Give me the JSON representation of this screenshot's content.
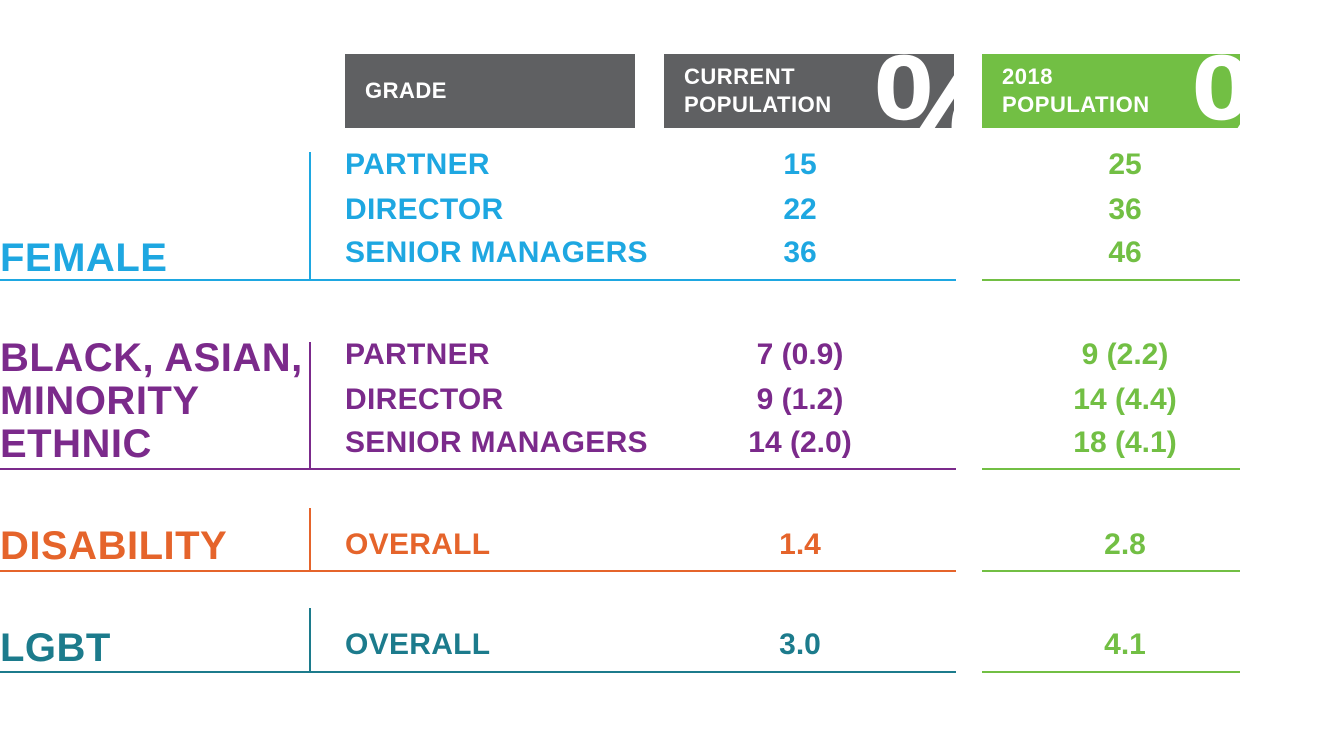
{
  "header": {
    "grade": "GRADE",
    "current_line1": "CURRENT",
    "current_line2": "POPULATION",
    "target_line1": "2018",
    "target_line2": "POPULATION",
    "percent_symbol": "%"
  },
  "colors": {
    "female": "#1ea7e1",
    "bame": "#7b2a8b",
    "disability": "#e5642b",
    "lgbt": "#1c7b8c",
    "target": "#72bf44",
    "header_gray": "#5f6062"
  },
  "chart_data": {
    "type": "table",
    "columns": [
      "GRADE",
      "CURRENT POPULATION %",
      "2018 POPULATION %"
    ],
    "groups": [
      {
        "lines": [
          "FEMALE"
        ],
        "rows": [
          {
            "grade": "PARTNER",
            "current": "15",
            "target": "25"
          },
          {
            "grade": "DIRECTOR",
            "current": "22",
            "target": "36"
          },
          {
            "grade": "SENIOR MANAGERS",
            "current": "36",
            "target": "46"
          }
        ]
      },
      {
        "lines": [
          "BLACK, ASIAN,",
          "MINORITY",
          "ETHNIC"
        ],
        "rows": [
          {
            "grade": "PARTNER",
            "current": "7 (0.9)",
            "target": "9 (2.2)"
          },
          {
            "grade": "DIRECTOR",
            "current": "9 (1.2)",
            "target": "14 (4.4)"
          },
          {
            "grade": "SENIOR MANAGERS",
            "current": "14 (2.0)",
            "target": "18 (4.1)"
          }
        ]
      },
      {
        "lines": [
          "DISABILITY"
        ],
        "rows": [
          {
            "grade": "OVERALL",
            "current": "1.4",
            "target": "2.8"
          }
        ]
      },
      {
        "lines": [
          "LGBT"
        ],
        "rows": [
          {
            "grade": "OVERALL",
            "current": "3.0",
            "target": "4.1"
          }
        ]
      }
    ]
  }
}
